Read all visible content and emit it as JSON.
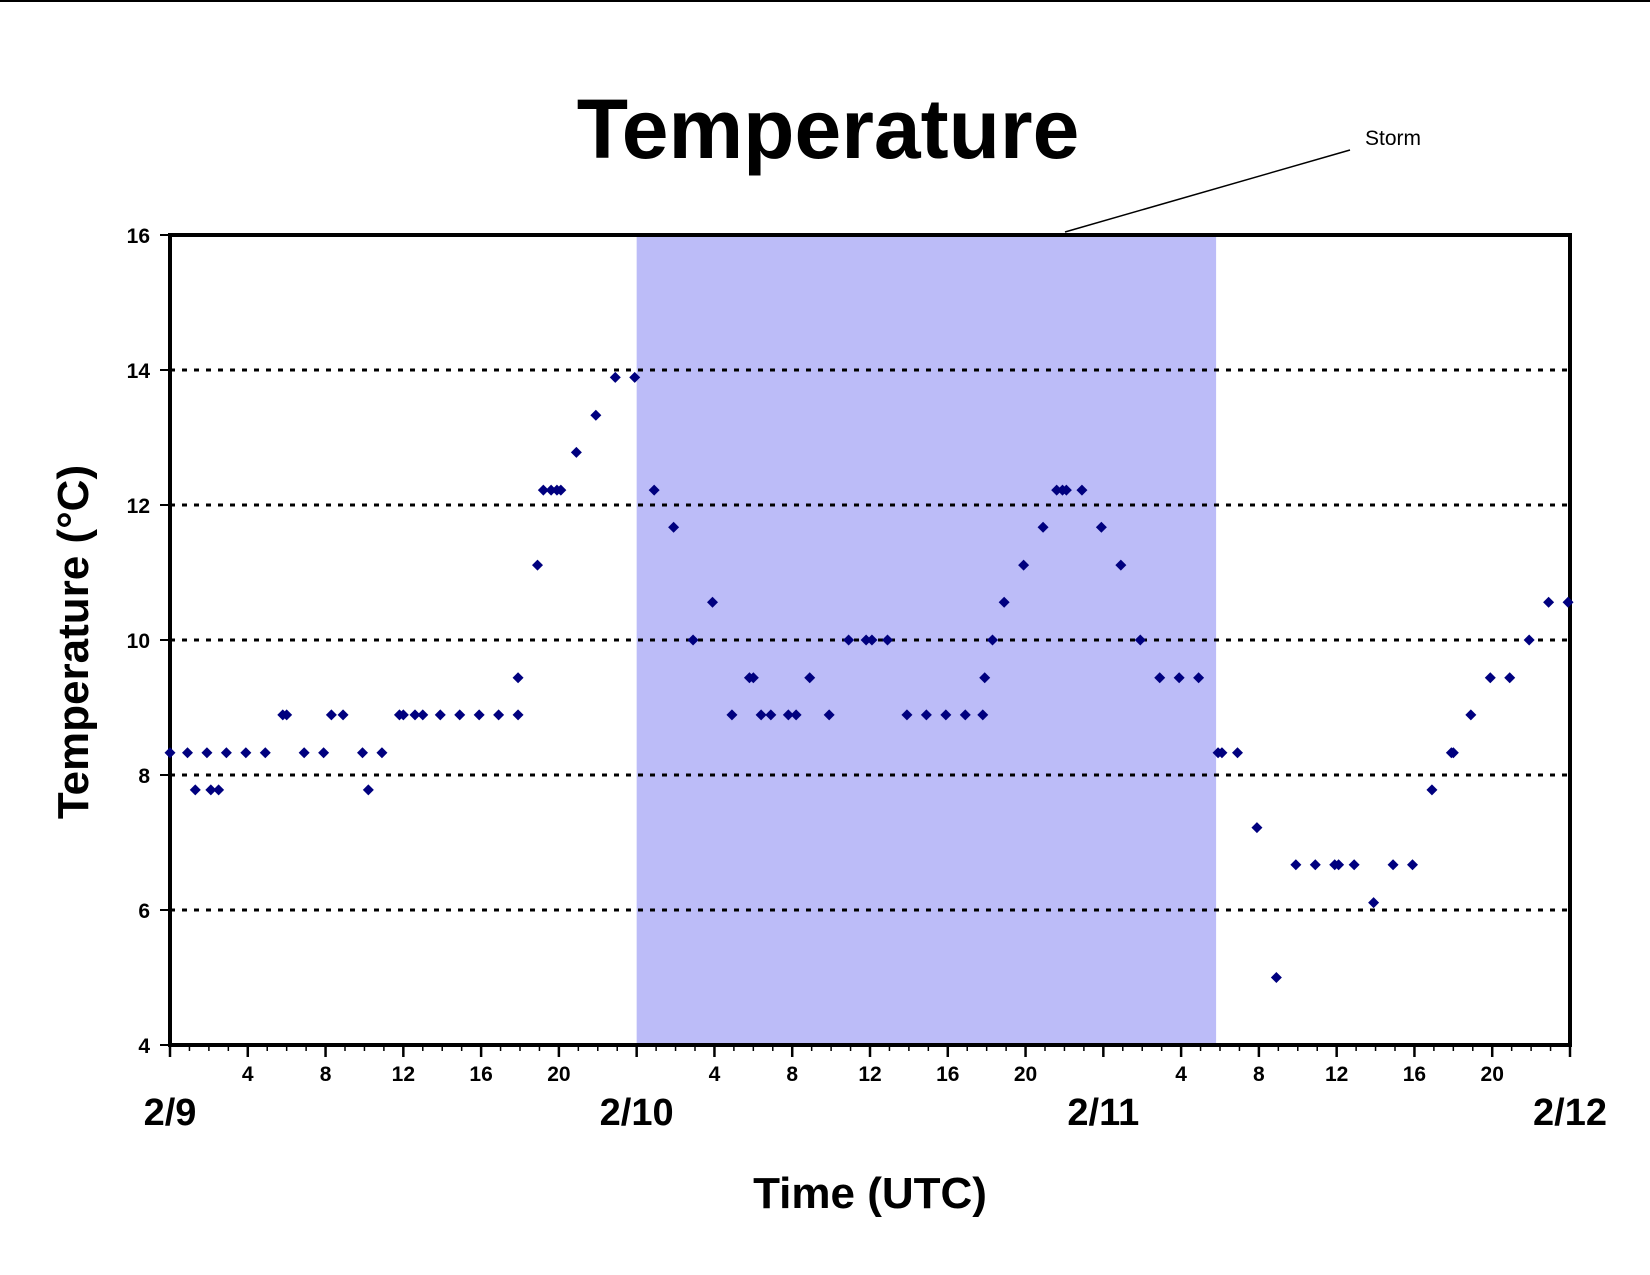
{
  "chart_data": {
    "type": "scatter",
    "title": "Temperature",
    "xlabel": "Time (UTC)",
    "ylabel": "Temperature (°C)",
    "x_unit": "hours (UTC)",
    "xlim": [
      0,
      72
    ],
    "ylim": [
      4,
      16
    ],
    "y_ticks": [
      4,
      6,
      8,
      10,
      12,
      14,
      16
    ],
    "gridlines_y": [
      6,
      8,
      10,
      12,
      14
    ],
    "grid_style": "dotted horizontal",
    "x_hour_ticks": [
      {
        "hour": 4,
        "label": "4"
      },
      {
        "hour": 8,
        "label": "8"
      },
      {
        "hour": 12,
        "label": "12"
      },
      {
        "hour": 16,
        "label": "16"
      },
      {
        "hour": 20,
        "label": "20"
      },
      {
        "hour": 28,
        "label": "4"
      },
      {
        "hour": 32,
        "label": "8"
      },
      {
        "hour": 36,
        "label": "12"
      },
      {
        "hour": 40,
        "label": "16"
      },
      {
        "hour": 44,
        "label": "20"
      },
      {
        "hour": 52,
        "label": "4"
      },
      {
        "hour": 56,
        "label": "8"
      },
      {
        "hour": 60,
        "label": "12"
      },
      {
        "hour": 64,
        "label": "16"
      },
      {
        "hour": 68,
        "label": "20"
      }
    ],
    "date_labels": [
      {
        "hour": 0,
        "label": "2/9"
      },
      {
        "hour": 24,
        "label": "2/10"
      },
      {
        "hour": 48,
        "label": "2/11"
      },
      {
        "hour": 72,
        "label": "2/12"
      }
    ],
    "shaded_region": {
      "label": "Storm",
      "x_start": 24,
      "x_end": 53.8,
      "color": "#bcbcf8"
    },
    "marker_color": "#00007f",
    "points": [
      {
        "x": 0,
        "y": 8.33
      },
      {
        "x": 0.9,
        "y": 8.33
      },
      {
        "x": 1.3,
        "y": 7.78
      },
      {
        "x": 1.9,
        "y": 8.33
      },
      {
        "x": 2.1,
        "y": 7.78
      },
      {
        "x": 2.5,
        "y": 7.78
      },
      {
        "x": 2.9,
        "y": 8.33
      },
      {
        "x": 3.9,
        "y": 8.33
      },
      {
        "x": 4.9,
        "y": 8.33
      },
      {
        "x": 5.8,
        "y": 8.89
      },
      {
        "x": 6.0,
        "y": 8.89
      },
      {
        "x": 6.9,
        "y": 8.33
      },
      {
        "x": 7.9,
        "y": 8.33
      },
      {
        "x": 8.3,
        "y": 8.89
      },
      {
        "x": 8.9,
        "y": 8.89
      },
      {
        "x": 9.9,
        "y": 8.33
      },
      {
        "x": 10.2,
        "y": 7.78
      },
      {
        "x": 10.9,
        "y": 8.33
      },
      {
        "x": 11.8,
        "y": 8.89
      },
      {
        "x": 12.0,
        "y": 8.89
      },
      {
        "x": 12.6,
        "y": 8.89
      },
      {
        "x": 13.0,
        "y": 8.89
      },
      {
        "x": 13.9,
        "y": 8.89
      },
      {
        "x": 14.9,
        "y": 8.89
      },
      {
        "x": 15.9,
        "y": 8.89
      },
      {
        "x": 16.9,
        "y": 8.89
      },
      {
        "x": 17.9,
        "y": 9.44
      },
      {
        "x": 17.9,
        "y": 8.89
      },
      {
        "x": 18.9,
        "y": 11.11
      },
      {
        "x": 19.2,
        "y": 12.22
      },
      {
        "x": 19.6,
        "y": 12.22
      },
      {
        "x": 19.9,
        "y": 12.22
      },
      {
        "x": 20.1,
        "y": 12.22
      },
      {
        "x": 20.9,
        "y": 12.78
      },
      {
        "x": 21.9,
        "y": 13.33
      },
      {
        "x": 22.9,
        "y": 13.89
      },
      {
        "x": 23.9,
        "y": 13.89
      },
      {
        "x": 24.9,
        "y": 12.22
      },
      {
        "x": 25.9,
        "y": 11.67
      },
      {
        "x": 26.9,
        "y": 10.0
      },
      {
        "x": 27.9,
        "y": 10.56
      },
      {
        "x": 28.9,
        "y": 8.89
      },
      {
        "x": 29.8,
        "y": 9.44
      },
      {
        "x": 30.0,
        "y": 9.44
      },
      {
        "x": 30.4,
        "y": 8.89
      },
      {
        "x": 30.9,
        "y": 8.89
      },
      {
        "x": 31.8,
        "y": 8.89
      },
      {
        "x": 32.2,
        "y": 8.89
      },
      {
        "x": 32.9,
        "y": 9.44
      },
      {
        "x": 33.9,
        "y": 8.89
      },
      {
        "x": 34.9,
        "y": 10.0
      },
      {
        "x": 35.8,
        "y": 10.0
      },
      {
        "x": 36.1,
        "y": 10.0
      },
      {
        "x": 36.9,
        "y": 10.0
      },
      {
        "x": 37.9,
        "y": 8.89
      },
      {
        "x": 38.9,
        "y": 8.89
      },
      {
        "x": 39.9,
        "y": 8.89
      },
      {
        "x": 40.9,
        "y": 8.89
      },
      {
        "x": 41.8,
        "y": 8.89
      },
      {
        "x": 41.9,
        "y": 9.44
      },
      {
        "x": 42.3,
        "y": 10.0
      },
      {
        "x": 42.9,
        "y": 10.56
      },
      {
        "x": 43.9,
        "y": 11.11
      },
      {
        "x": 44.9,
        "y": 11.67
      },
      {
        "x": 45.6,
        "y": 12.22
      },
      {
        "x": 45.9,
        "y": 12.22
      },
      {
        "x": 46.1,
        "y": 12.22
      },
      {
        "x": 46.9,
        "y": 12.22
      },
      {
        "x": 47.9,
        "y": 11.67
      },
      {
        "x": 48.9,
        "y": 11.11
      },
      {
        "x": 49.9,
        "y": 10.0
      },
      {
        "x": 50.9,
        "y": 9.44
      },
      {
        "x": 51.9,
        "y": 9.44
      },
      {
        "x": 52.9,
        "y": 9.44
      },
      {
        "x": 53.9,
        "y": 8.33
      },
      {
        "x": 54.1,
        "y": 8.33
      },
      {
        "x": 54.9,
        "y": 8.33
      },
      {
        "x": 55.9,
        "y": 7.22
      },
      {
        "x": 56.9,
        "y": 5.0
      },
      {
        "x": 57.9,
        "y": 6.67
      },
      {
        "x": 58.9,
        "y": 6.67
      },
      {
        "x": 59.9,
        "y": 6.67
      },
      {
        "x": 60.1,
        "y": 6.67
      },
      {
        "x": 60.9,
        "y": 6.67
      },
      {
        "x": 61.9,
        "y": 6.11
      },
      {
        "x": 62.9,
        "y": 6.67
      },
      {
        "x": 63.9,
        "y": 6.67
      },
      {
        "x": 64.9,
        "y": 7.78
      },
      {
        "x": 65.9,
        "y": 8.33
      },
      {
        "x": 66.0,
        "y": 8.33
      },
      {
        "x": 66.9,
        "y": 8.89
      },
      {
        "x": 67.9,
        "y": 9.44
      },
      {
        "x": 68.9,
        "y": 9.44
      },
      {
        "x": 69.9,
        "y": 10.0
      },
      {
        "x": 70.9,
        "y": 10.56
      },
      {
        "x": 71.9,
        "y": 10.56
      }
    ]
  }
}
